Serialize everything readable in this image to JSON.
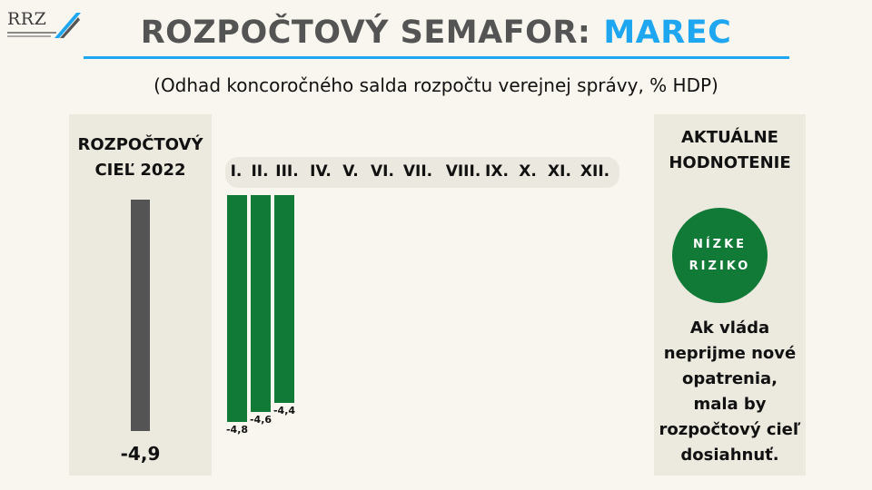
{
  "logo": {
    "text": "RRZ"
  },
  "header": {
    "title_main": "ROZPOČTOVÝ SEMAFOR:",
    "title_month": "MAREC",
    "subtitle": "(Odhad koncoročného salda rozpočtu verejnej správy,  % HDP)"
  },
  "target": {
    "heading_line1": "ROZPOČTOVÝ",
    "heading_line2": "CIEĽ 2022",
    "value": -4.9,
    "value_label": "-4,9"
  },
  "assessment": {
    "heading_line1": "AKTUÁLNE",
    "heading_line2": "HODNOTENIE",
    "risk_line1": "NÍZKE",
    "risk_line2": "RIZIKO",
    "text_lines": [
      "Ak vláda",
      "neprijme nové",
      "opatrenia,",
      "mala by",
      "rozpočtový cieľ",
      "dosiahnuť."
    ],
    "colors": {
      "low_risk": "#107a36"
    }
  },
  "chart_data": {
    "type": "bar",
    "categories": [
      "I.",
      "II.",
      "III.",
      "IV.",
      "V.",
      "VI.",
      "VII.",
      "VIII.",
      "IX.",
      "X.",
      "XI.",
      "XII."
    ],
    "series": [
      {
        "values": [
          -4.8,
          -4.6,
          -4.4,
          null,
          null,
          null,
          null,
          null,
          null,
          null,
          null,
          null
        ],
        "labels": [
          "-4,8",
          "-4,6",
          "-4,4",
          "",
          "",
          "",
          "",
          "",
          "",
          "",
          "",
          ""
        ],
        "color": "#107a36"
      }
    ],
    "target_value": -4.9,
    "target_color": "#545454"
  }
}
